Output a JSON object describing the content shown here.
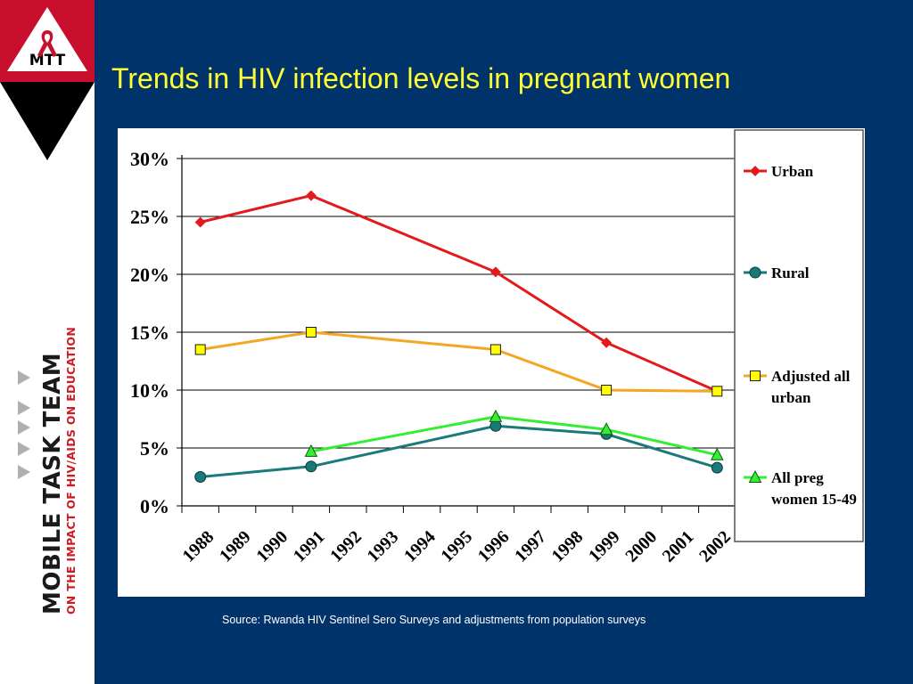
{
  "slide": {
    "title": "Trends in HIV infection levels in pregnant women",
    "source": "Source: Rwanda HIV Sentinel Sero Surveys and adjustments from population surveys",
    "colors": {
      "background": "#00336a",
      "title": "#ffff33",
      "logo_red": "#c8102e",
      "logo_black": "#000000"
    }
  },
  "logo": {
    "top_mark": "MTT",
    "team_name": "MOBILE TASK TEAM",
    "tagline": "ON THE IMPACT OF HIV/AIDS ON EDUCATION"
  },
  "chart_data": {
    "type": "line",
    "categories": [
      "1988",
      "1989",
      "1990",
      "1991",
      "1992",
      "1993",
      "1994",
      "1995",
      "1996",
      "1997",
      "1998",
      "1999",
      "2000",
      "2001",
      "2002"
    ],
    "ylim": [
      0,
      0.3
    ],
    "yticks": [
      "0%",
      "5%",
      "10%",
      "15%",
      "20%",
      "25%",
      "30%"
    ],
    "grid": true,
    "legend_position": "right",
    "series": [
      {
        "name": "Urban",
        "color": "#e31a1c",
        "marker": "diamond",
        "points": [
          {
            "x": 0,
            "y": 0.245
          },
          {
            "x": 3,
            "y": 0.268
          },
          {
            "x": 8,
            "y": 0.202
          },
          {
            "x": 11,
            "y": 0.141
          },
          {
            "x": 14,
            "y": 0.099
          }
        ]
      },
      {
        "name": "Rural",
        "color": "#1a7a7a",
        "marker": "circle",
        "points": [
          {
            "x": 0,
            "y": 0.025
          },
          {
            "x": 3,
            "y": 0.034
          },
          {
            "x": 8,
            "y": 0.069
          },
          {
            "x": 11,
            "y": 0.062
          },
          {
            "x": 14,
            "y": 0.033
          }
        ]
      },
      {
        "name": "Adjusted all urban",
        "color": "#f5a623",
        "marker": "square",
        "points": [
          {
            "x": 0,
            "y": 0.135
          },
          {
            "x": 3,
            "y": 0.15
          },
          {
            "x": 8,
            "y": 0.135
          },
          {
            "x": 11,
            "y": 0.1
          },
          {
            "x": 14,
            "y": 0.099
          }
        ]
      },
      {
        "name": "All preg women 15-49",
        "color": "#33ee33",
        "marker": "triangle",
        "points": [
          {
            "x": 3,
            "y": 0.047
          },
          {
            "x": 8,
            "y": 0.077
          },
          {
            "x": 11,
            "y": 0.066
          },
          {
            "x": 14,
            "y": 0.044
          }
        ]
      }
    ]
  }
}
